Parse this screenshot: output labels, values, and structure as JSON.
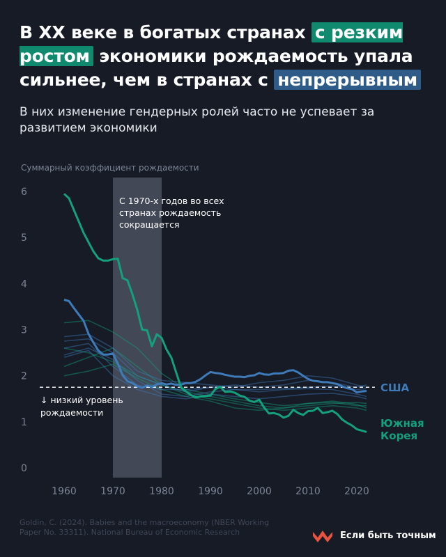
{
  "header": {
    "title_part1": "В XX веке в богатых странах",
    "title_highlight1": "с резким ростом",
    "title_part2": "экономики рождаемость упала сильнее, чем в странах с",
    "title_highlight2": "непрерывным",
    "subtitle": "В них изменение гендерных ролей часто не успевает за развитием экономики"
  },
  "footer": {
    "source": "Goldin, C. (2024). Babies and the macroeconomy (NBER Working Paper No. 33311). National Bureau of Economic Research",
    "brand": "Если быть точным"
  },
  "colors": {
    "background": "#161b26",
    "green": "#14a07c",
    "blue": "#3f7bb8",
    "highlight_green": "#0f8a6e",
    "highlight_blue": "#2e5b87",
    "axis_text": "#7d8595",
    "band": "#515866",
    "brand_logo": "#e8523f"
  },
  "chart_data": {
    "type": "line",
    "ylabel": "Суммарный коэффициент рождаемости",
    "xlabel": "",
    "xlim": [
      1955,
      2023
    ],
    "ylim": [
      0,
      6
    ],
    "x_ticks": [
      1960,
      1970,
      1980,
      1990,
      2000,
      2010,
      2020
    ],
    "y_ticks": [
      0,
      1,
      2,
      3,
      4,
      5,
      6
    ],
    "grid": false,
    "shaded_period": {
      "from": 1970,
      "to": 1980
    },
    "reference_line": {
      "y": 1.75,
      "label": "↓ низкий уровень рождаемости"
    },
    "annotation": "С 1970-х годов во всех странах рождаемость сокращается",
    "highlighted_series": [
      {
        "name": "Южная Корея",
        "color": "#14a07c",
        "x": [
          1960,
          1961,
          1962,
          1963,
          1964,
          1965,
          1966,
          1967,
          1968,
          1969,
          1970,
          1971,
          1972,
          1973,
          1974,
          1975,
          1976,
          1977,
          1978,
          1979,
          1980,
          1981,
          1982,
          1983,
          1984,
          1985,
          1986,
          1987,
          1988,
          1989,
          1990,
          1991,
          1992,
          1993,
          1994,
          1995,
          1996,
          1997,
          1998,
          1999,
          2000,
          2001,
          2002,
          2003,
          2004,
          2005,
          2006,
          2007,
          2008,
          2009,
          2010,
          2011,
          2012,
          2013,
          2014,
          2015,
          2016,
          2017,
          2018,
          2019,
          2020,
          2021,
          2022
        ],
        "values": [
          5.95,
          5.85,
          5.6,
          5.35,
          5.1,
          4.9,
          4.7,
          4.55,
          4.5,
          4.5,
          4.53,
          4.54,
          4.12,
          4.07,
          3.77,
          3.43,
          3.0,
          2.99,
          2.64,
          2.9,
          2.82,
          2.57,
          2.39,
          2.06,
          1.74,
          1.66,
          1.58,
          1.53,
          1.55,
          1.56,
          1.57,
          1.71,
          1.76,
          1.65,
          1.66,
          1.63,
          1.57,
          1.54,
          1.46,
          1.43,
          1.48,
          1.31,
          1.18,
          1.19,
          1.16,
          1.09,
          1.13,
          1.26,
          1.19,
          1.15,
          1.23,
          1.24,
          1.3,
          1.19,
          1.21,
          1.24,
          1.17,
          1.05,
          0.98,
          0.92,
          0.84,
          0.81,
          0.78
        ]
      },
      {
        "name": "США",
        "color": "#3f7bb8",
        "x": [
          1960,
          1961,
          1962,
          1963,
          1964,
          1965,
          1966,
          1967,
          1968,
          1969,
          1970,
          1971,
          1972,
          1973,
          1974,
          1975,
          1976,
          1977,
          1978,
          1979,
          1980,
          1981,
          1982,
          1983,
          1984,
          1985,
          1986,
          1987,
          1988,
          1989,
          1990,
          1991,
          1992,
          1993,
          1994,
          1995,
          1996,
          1997,
          1998,
          1999,
          2000,
          2001,
          2002,
          2003,
          2004,
          2005,
          2006,
          2007,
          2008,
          2009,
          2010,
          2011,
          2012,
          2013,
          2014,
          2015,
          2016,
          2017,
          2018,
          2019,
          2020,
          2021,
          2022
        ],
        "values": [
          3.65,
          3.62,
          3.47,
          3.33,
          3.19,
          2.91,
          2.72,
          2.55,
          2.46,
          2.46,
          2.48,
          2.27,
          2.01,
          1.88,
          1.84,
          1.77,
          1.74,
          1.79,
          1.76,
          1.81,
          1.84,
          1.81,
          1.83,
          1.8,
          1.81,
          1.84,
          1.84,
          1.87,
          1.93,
          2.01,
          2.08,
          2.06,
          2.05,
          2.02,
          2.0,
          1.98,
          1.98,
          1.97,
          2.0,
          2.01,
          2.06,
          2.03,
          2.02,
          2.05,
          2.05,
          2.06,
          2.11,
          2.12,
          2.07,
          2.0,
          1.93,
          1.89,
          1.88,
          1.86,
          1.86,
          1.84,
          1.82,
          1.77,
          1.73,
          1.71,
          1.64,
          1.66,
          1.67
        ]
      }
    ],
    "background_series_green": [
      {
        "x": [
          1960,
          1965,
          1970,
          1975,
          1980,
          1985,
          1990,
          1995,
          2000,
          2005,
          2010,
          2015,
          2020,
          2022
        ],
        "values": [
          3.15,
          3.2,
          2.95,
          2.6,
          2.05,
          1.7,
          1.6,
          1.5,
          1.42,
          1.35,
          1.4,
          1.45,
          1.38,
          1.3
        ]
      },
      {
        "x": [
          1960,
          1965,
          1970,
          1975,
          1980,
          1985,
          1990,
          1995,
          2000,
          2005,
          2010,
          2015,
          2020,
          2022
        ],
        "values": [
          2.6,
          2.5,
          2.3,
          2.0,
          1.8,
          1.65,
          1.55,
          1.45,
          1.35,
          1.3,
          1.35,
          1.4,
          1.42,
          1.4
        ]
      },
      {
        "x": [
          1960,
          1965,
          1970,
          1975,
          1980,
          1985,
          1990,
          1995,
          2000,
          2005,
          2010,
          2015,
          2020,
          2022
        ],
        "values": [
          2.2,
          2.4,
          2.6,
          2.2,
          1.8,
          1.6,
          1.5,
          1.4,
          1.3,
          1.25,
          1.3,
          1.35,
          1.3,
          1.25
        ]
      },
      {
        "x": [
          1960,
          1965,
          1970,
          1975,
          1980,
          1985,
          1990,
          1995,
          2000,
          2005,
          2010,
          2015,
          2020,
          2022
        ],
        "values": [
          2.0,
          2.1,
          2.25,
          1.95,
          1.7,
          1.55,
          1.45,
          1.3,
          1.25,
          1.3,
          1.4,
          1.42,
          1.35,
          1.35
        ]
      }
    ],
    "background_series_blue": [
      {
        "x": [
          1960,
          1965,
          1970,
          1975,
          1980,
          1985,
          1990,
          1995,
          2000,
          2005,
          2010,
          2015,
          2020,
          2022
        ],
        "values": [
          2.85,
          2.9,
          2.6,
          2.1,
          1.9,
          1.85,
          1.8,
          1.75,
          1.85,
          1.9,
          2.0,
          1.95,
          1.8,
          1.75
        ]
      },
      {
        "x": [
          1960,
          1965,
          1970,
          1975,
          1980,
          1985,
          1990,
          1995,
          2000,
          2005,
          2010,
          2015,
          2020,
          2022
        ],
        "values": [
          2.75,
          2.8,
          2.5,
          2.0,
          1.8,
          1.65,
          1.75,
          1.8,
          1.75,
          1.8,
          1.9,
          1.85,
          1.75,
          1.8
        ]
      },
      {
        "x": [
          1960,
          1965,
          1970,
          1975,
          1980,
          1985,
          1990,
          1995,
          2000,
          2005,
          2010,
          2015,
          2020,
          2022
        ],
        "values": [
          2.4,
          2.55,
          2.0,
          1.7,
          1.55,
          1.5,
          1.6,
          1.55,
          1.5,
          1.55,
          1.6,
          1.62,
          1.55,
          1.5
        ]
      },
      {
        "x": [
          1960,
          1965,
          1970,
          1975,
          1980,
          1985,
          1990,
          1995,
          2000,
          2005,
          2010,
          2015,
          2020,
          2022
        ],
        "values": [
          2.45,
          2.6,
          2.35,
          1.9,
          1.6,
          1.55,
          1.65,
          1.7,
          1.7,
          1.72,
          1.75,
          1.78,
          1.7,
          1.72
        ]
      },
      {
        "x": [
          1960,
          1965,
          1970,
          1975,
          1980,
          1985,
          1990,
          1995,
          2000,
          2005,
          2010,
          2015,
          2020,
          2022
        ],
        "values": [
          2.6,
          2.7,
          2.2,
          1.8,
          1.7,
          1.7,
          1.75,
          1.7,
          1.65,
          1.7,
          1.72,
          1.7,
          1.6,
          1.55
        ]
      }
    ]
  }
}
